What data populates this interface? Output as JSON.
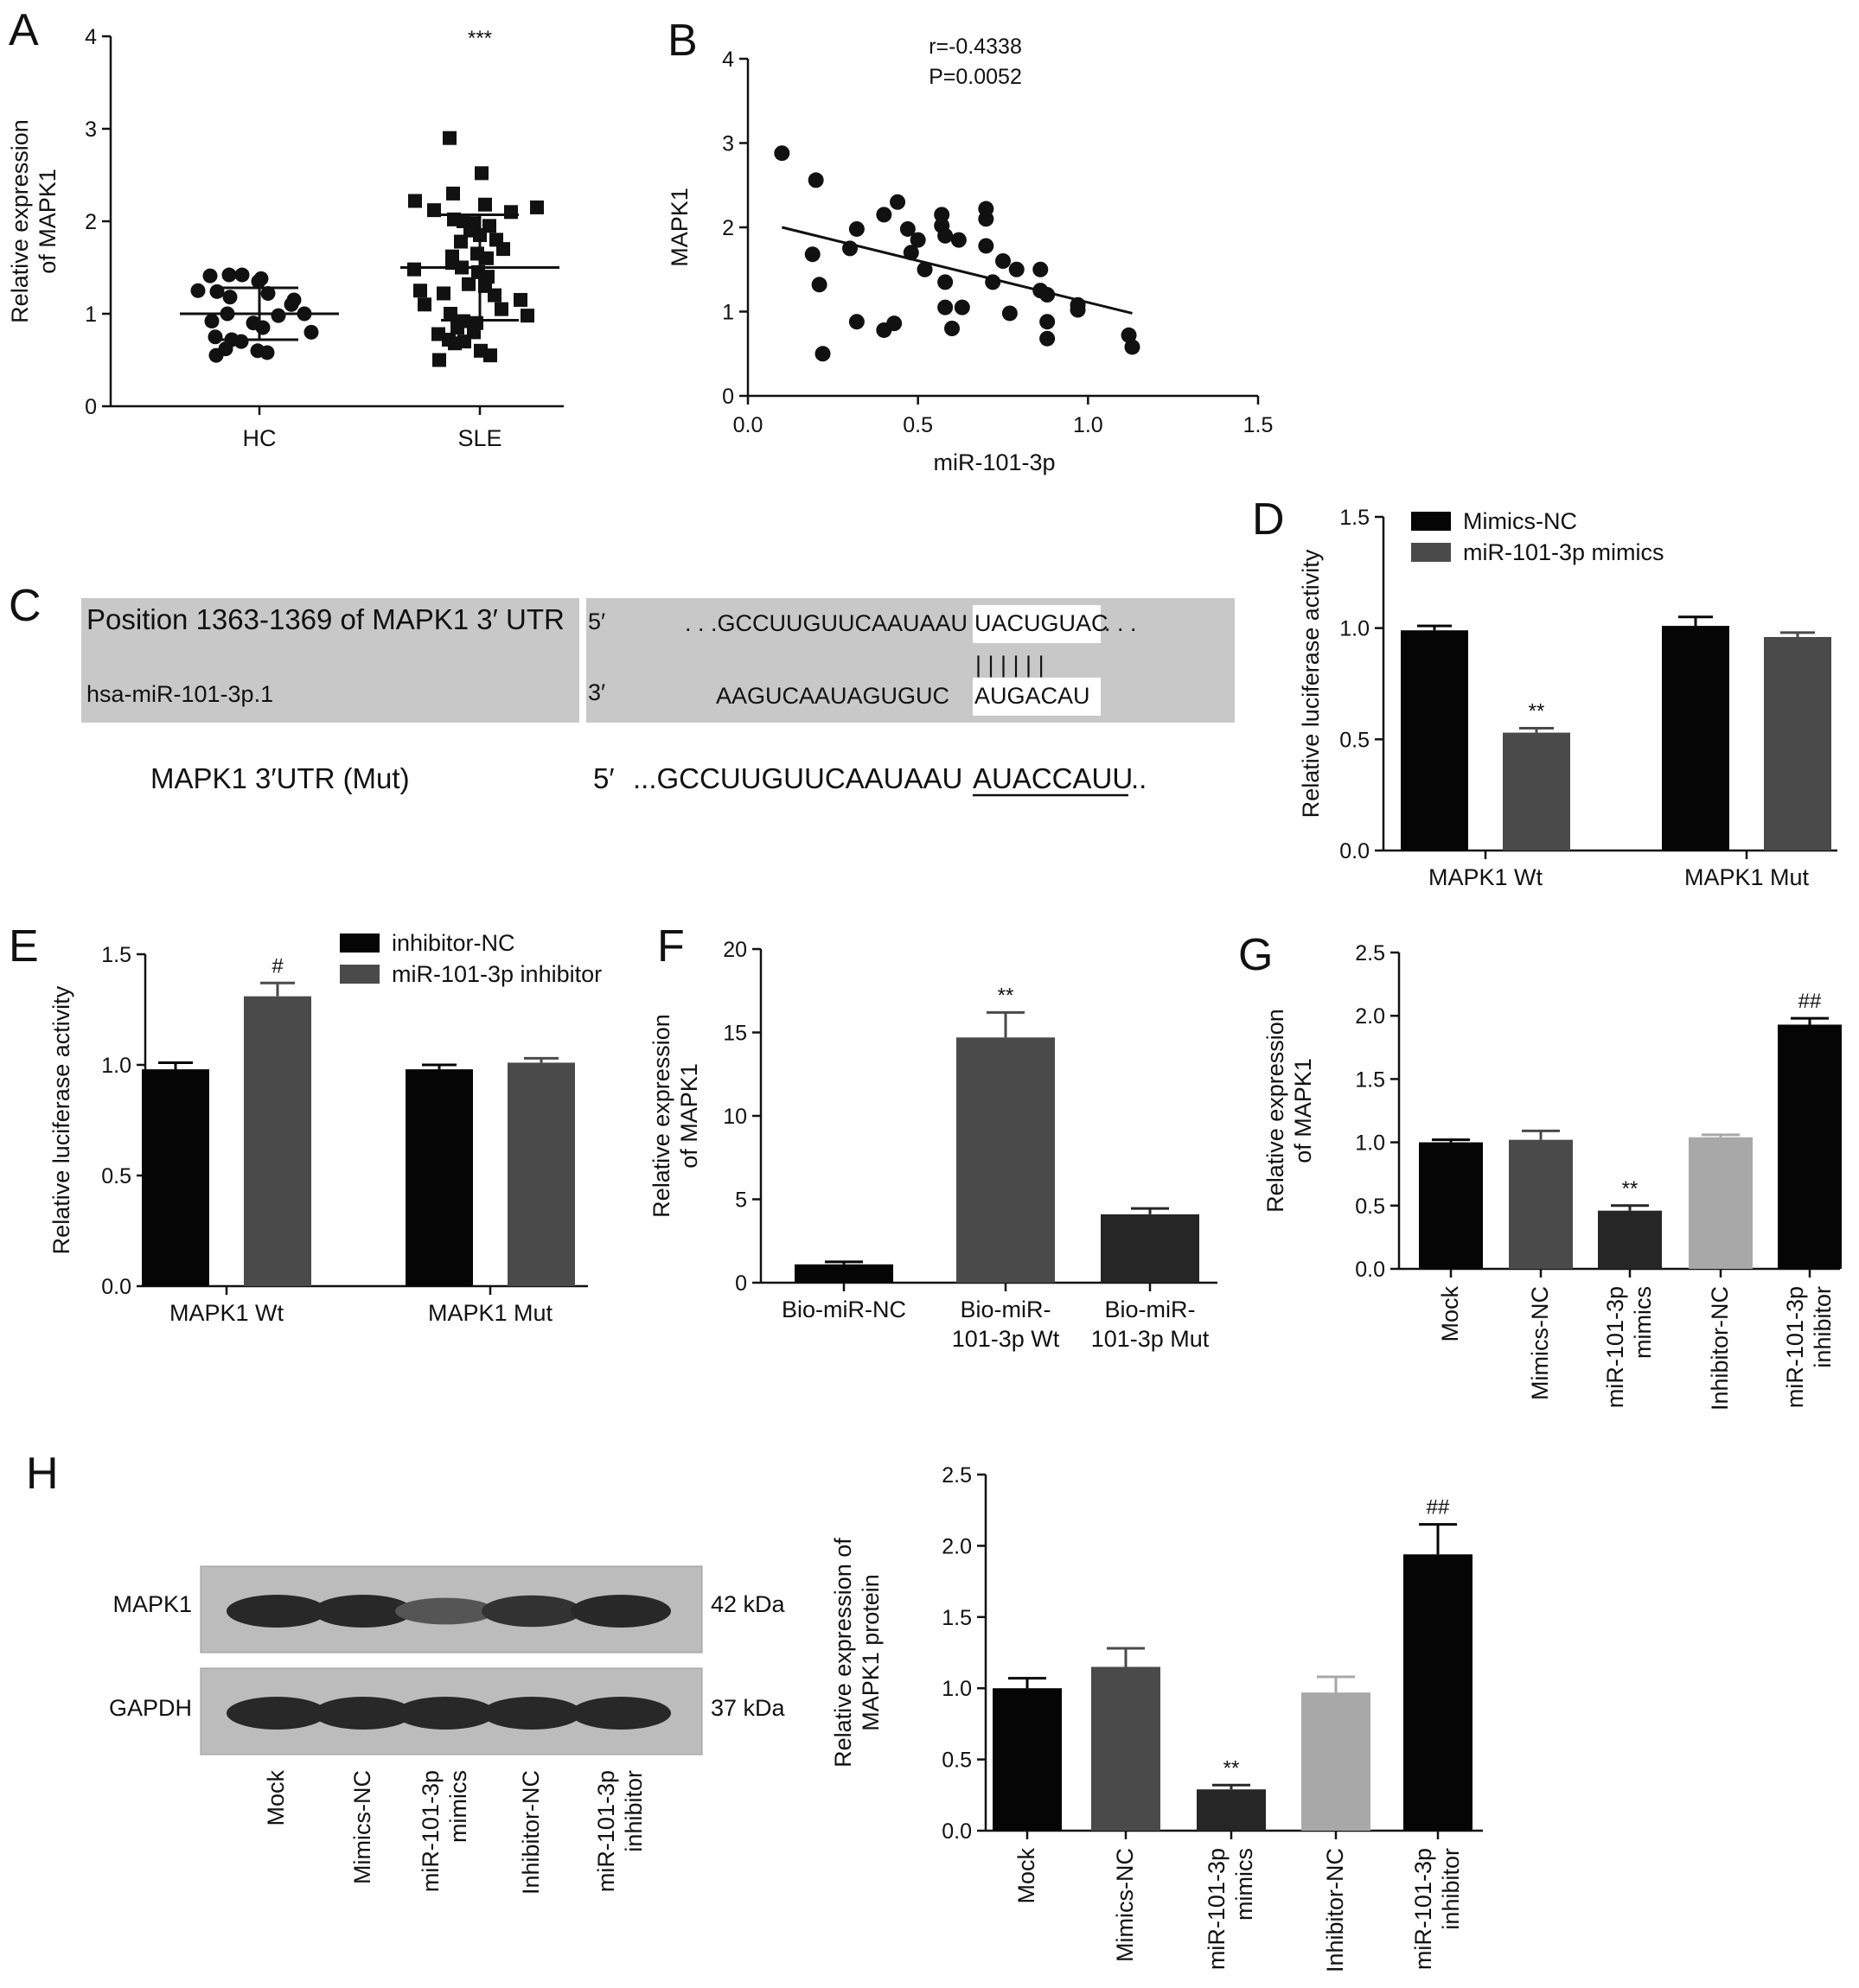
{
  "panels": {
    "A": "A",
    "B": "B",
    "C": "C",
    "D": "D",
    "E": "E",
    "F": "F",
    "G": "G",
    "H": "H"
  },
  "colors": {
    "black": "#050505",
    "dark_gray": "#4a4a4a",
    "charcoal": "#262626",
    "light_gray": "#a8a8a8",
    "seq_box": "#c8c8c8"
  },
  "chart_data": [
    {
      "panel": "A",
      "type": "scatter",
      "ylabel": "Relative expression\nof MAPK1",
      "ylim": [
        0,
        4
      ],
      "yticks": [
        "0",
        "1",
        "2",
        "3",
        "4"
      ],
      "categories": [
        "HC",
        "SLE"
      ],
      "significance": [
        "",
        "***"
      ],
      "summary": [
        {
          "mean": 1.0,
          "sd_low": 0.72,
          "sd_high": 1.28
        },
        {
          "mean": 1.5,
          "sd_low": 0.93,
          "sd_high": 2.07
        }
      ],
      "series": [
        {
          "marker": "circle",
          "values": [
            1.42,
            1.38,
            1.41,
            1.42,
            1.35,
            1.22,
            1.24,
            1.15,
            1.25,
            1.18,
            1.1,
            0.98,
            1.0,
            1.0,
            0.9,
            0.85,
            0.92,
            0.8,
            0.75,
            0.72,
            0.7,
            0.6,
            0.58,
            0.55,
            0.62
          ]
        },
        {
          "marker": "square",
          "values": [
            2.9,
            2.52,
            2.3,
            2.18,
            2.12,
            2.1,
            2.22,
            2.15,
            2.0,
            1.98,
            1.95,
            2.02,
            1.9,
            1.85,
            1.8,
            1.78,
            1.65,
            1.6,
            1.7,
            1.55,
            1.5,
            1.45,
            1.4,
            1.48,
            1.32,
            1.3,
            1.2,
            1.22,
            1.15,
            1.1,
            1.05,
            1.0,
            0.98,
            0.9,
            0.92,
            0.85,
            0.8,
            0.78,
            0.68,
            0.7,
            0.6,
            0.55,
            0.5,
            0.72,
            1.25,
            1.62
          ]
        }
      ]
    },
    {
      "panel": "B",
      "type": "scatter",
      "xlabel": "miR-101-3p",
      "ylabel": "MAPK1",
      "xlim": [
        0,
        1.5
      ],
      "ylim": [
        0,
        4
      ],
      "xticks": [
        "0.0",
        "0.5",
        "1.0",
        "1.5"
      ],
      "yticks": [
        "0",
        "1",
        "2",
        "3",
        "4"
      ],
      "annotation": [
        "r=-0.4338",
        "P=0.0052"
      ],
      "fit": {
        "x": [
          0.1,
          1.13
        ],
        "y": [
          2.0,
          0.98
        ]
      },
      "points": [
        {
          "x": 0.1,
          "y": 2.88
        },
        {
          "x": 0.2,
          "y": 2.56
        },
        {
          "x": 0.19,
          "y": 1.68
        },
        {
          "x": 0.21,
          "y": 1.32
        },
        {
          "x": 0.22,
          "y": 0.5
        },
        {
          "x": 0.3,
          "y": 1.75
        },
        {
          "x": 0.32,
          "y": 1.98
        },
        {
          "x": 0.32,
          "y": 0.88
        },
        {
          "x": 0.4,
          "y": 2.15
        },
        {
          "x": 0.4,
          "y": 0.78
        },
        {
          "x": 0.43,
          "y": 0.86
        },
        {
          "x": 0.44,
          "y": 2.3
        },
        {
          "x": 0.47,
          "y": 1.98
        },
        {
          "x": 0.48,
          "y": 1.7
        },
        {
          "x": 0.5,
          "y": 1.85
        },
        {
          "x": 0.52,
          "y": 1.5
        },
        {
          "x": 0.57,
          "y": 2.15
        },
        {
          "x": 0.57,
          "y": 2.02
        },
        {
          "x": 0.58,
          "y": 1.9
        },
        {
          "x": 0.58,
          "y": 1.35
        },
        {
          "x": 0.58,
          "y": 1.05
        },
        {
          "x": 0.6,
          "y": 0.8
        },
        {
          "x": 0.62,
          "y": 1.85
        },
        {
          "x": 0.63,
          "y": 1.05
        },
        {
          "x": 0.7,
          "y": 2.22
        },
        {
          "x": 0.7,
          "y": 2.1
        },
        {
          "x": 0.7,
          "y": 1.78
        },
        {
          "x": 0.72,
          "y": 1.35
        },
        {
          "x": 0.75,
          "y": 1.6
        },
        {
          "x": 0.77,
          "y": 0.98
        },
        {
          "x": 0.79,
          "y": 1.5
        },
        {
          "x": 0.86,
          "y": 1.5
        },
        {
          "x": 0.86,
          "y": 1.25
        },
        {
          "x": 0.88,
          "y": 1.2
        },
        {
          "x": 0.88,
          "y": 0.68
        },
        {
          "x": 0.88,
          "y": 0.88
        },
        {
          "x": 0.97,
          "y": 1.08
        },
        {
          "x": 0.97,
          "y": 1.02
        },
        {
          "x": 1.12,
          "y": 0.72
        },
        {
          "x": 1.13,
          "y": 0.58
        }
      ]
    },
    {
      "panel": "D",
      "type": "bar",
      "ylabel": "Relative luciferase activity",
      "ylim": [
        0,
        1.5
      ],
      "yticks": [
        "0.0",
        "0.5",
        "1.0",
        "1.5"
      ],
      "categories": [
        "MAPK1 Wt",
        "MAPK1 Mut"
      ],
      "series": [
        {
          "name": "Mimics-NC",
          "color": "#050505",
          "values": [
            0.99,
            1.01
          ],
          "errors": [
            0.02,
            0.04
          ],
          "sig": [
            "",
            ""
          ]
        },
        {
          "name": "miR-101-3p mimics",
          "color": "#4a4a4a",
          "values": [
            0.53,
            0.96
          ],
          "errors": [
            0.02,
            0.02
          ],
          "sig": [
            "**",
            ""
          ]
        }
      ]
    },
    {
      "panel": "E",
      "type": "bar",
      "ylabel": "Relative luciferase activity",
      "ylim": [
        0,
        1.5
      ],
      "yticks": [
        "0.0",
        "0.5",
        "1.0",
        "1.5"
      ],
      "categories": [
        "MAPK1 Wt",
        "MAPK1 Mut"
      ],
      "series": [
        {
          "name": "inhibitor-NC",
          "color": "#050505",
          "values": [
            0.98,
            0.98
          ],
          "errors": [
            0.03,
            0.02
          ],
          "sig": [
            "",
            ""
          ]
        },
        {
          "name": "miR-101-3p inhibitor",
          "color": "#4a4a4a",
          "values": [
            1.31,
            1.01
          ],
          "errors": [
            0.06,
            0.02
          ],
          "sig": [
            "#",
            ""
          ]
        }
      ]
    },
    {
      "panel": "F",
      "type": "bar",
      "ylabel": "Relative expression\nof MAPK1",
      "ylim": [
        0,
        20
      ],
      "yticks": [
        "0",
        "5",
        "10",
        "15",
        "20"
      ],
      "categories": [
        "Bio-miR-NC",
        "Bio-miR-\n101-3p Wt",
        "Bio-miR-\n101-3p Mut"
      ],
      "values": [
        1.1,
        14.7,
        4.1
      ],
      "errors": [
        0.15,
        1.5,
        0.35
      ],
      "colors": [
        "#050505",
        "#4a4a4a",
        "#262626"
      ],
      "sig": [
        "",
        "**",
        ""
      ]
    },
    {
      "panel": "G",
      "type": "bar",
      "ylabel": "Relative expression\nof MAPK1",
      "ylim": [
        0,
        2.5
      ],
      "yticks": [
        "0.0",
        "0.5",
        "1.0",
        "1.5",
        "2.0",
        "2.5"
      ],
      "categories": [
        "Mock",
        "Mimics-NC",
        "miR-101-3p\nmimics",
        "Inhibitor-NC",
        "miR-101-3p\ninhibitor"
      ],
      "values": [
        1.0,
        1.02,
        0.46,
        1.04,
        1.93
      ],
      "errors": [
        0.02,
        0.07,
        0.04,
        0.02,
        0.05
      ],
      "colors": [
        "#050505",
        "#4a4a4a",
        "#262626",
        "#a8a8a8",
        "#050505"
      ],
      "sig": [
        "",
        "",
        "**",
        "",
        "##"
      ]
    },
    {
      "panel": "H",
      "type": "bar",
      "ylabel": "Relative expression of\nMAPK1 protein",
      "ylim": [
        0,
        2.5
      ],
      "yticks": [
        "0.0",
        "0.5",
        "1.0",
        "1.5",
        "2.0",
        "2.5"
      ],
      "categories": [
        "Mock",
        "Mimics-NC",
        "miR-101-3p\nmimics",
        "Inhibitor-NC",
        "miR-101-3p\ninhibitor"
      ],
      "values": [
        1.0,
        1.15,
        0.29,
        0.97,
        1.94
      ],
      "errors": [
        0.07,
        0.13,
        0.03,
        0.11,
        0.21
      ],
      "colors": [
        "#050505",
        "#4a4a4a",
        "#262626",
        "#a8a8a8",
        "#050505"
      ],
      "sig": [
        "",
        "",
        "**",
        "",
        "##"
      ]
    }
  ],
  "sequence": {
    "target_label": "Position 1363-1369 of MAPK1 3′ UTR",
    "target_end": "5′",
    "target_seq": ". . .GCCUUGUUCAAUAAU",
    "target_seed": "UACUGUAC",
    "target_tail": ". . .",
    "pairing": "| | | | | |",
    "mirna_label": "hsa-miR-101-3p.1",
    "mirna_end": "3′",
    "mirna_seq": "AAGUCAAUAGUGUC",
    "mirna_seed": "AUGACAU",
    "mut_label": "MAPK1  3′UTR (Mut)",
    "mut_end": "5′",
    "mut_seq": "...GCCUUGUUCAAUAAU",
    "mut_seed": "AUACCAUU",
    "mut_tail": ".."
  },
  "blot": {
    "rows": [
      {
        "label": "MAPK1",
        "size": "42 kDa",
        "intensity": [
          1.0,
          1.0,
          0.55,
          0.9,
          1.0
        ]
      },
      {
        "label": "GAPDH",
        "size": "37 kDa",
        "intensity": [
          1.0,
          1.0,
          1.0,
          1.0,
          1.0
        ]
      }
    ],
    "lanes": [
      "Mock",
      "Mimics-NC",
      "miR-101-3p\nmimics",
      "Inhibitor-NC",
      "miR-101-3p\ninhibitor"
    ]
  }
}
